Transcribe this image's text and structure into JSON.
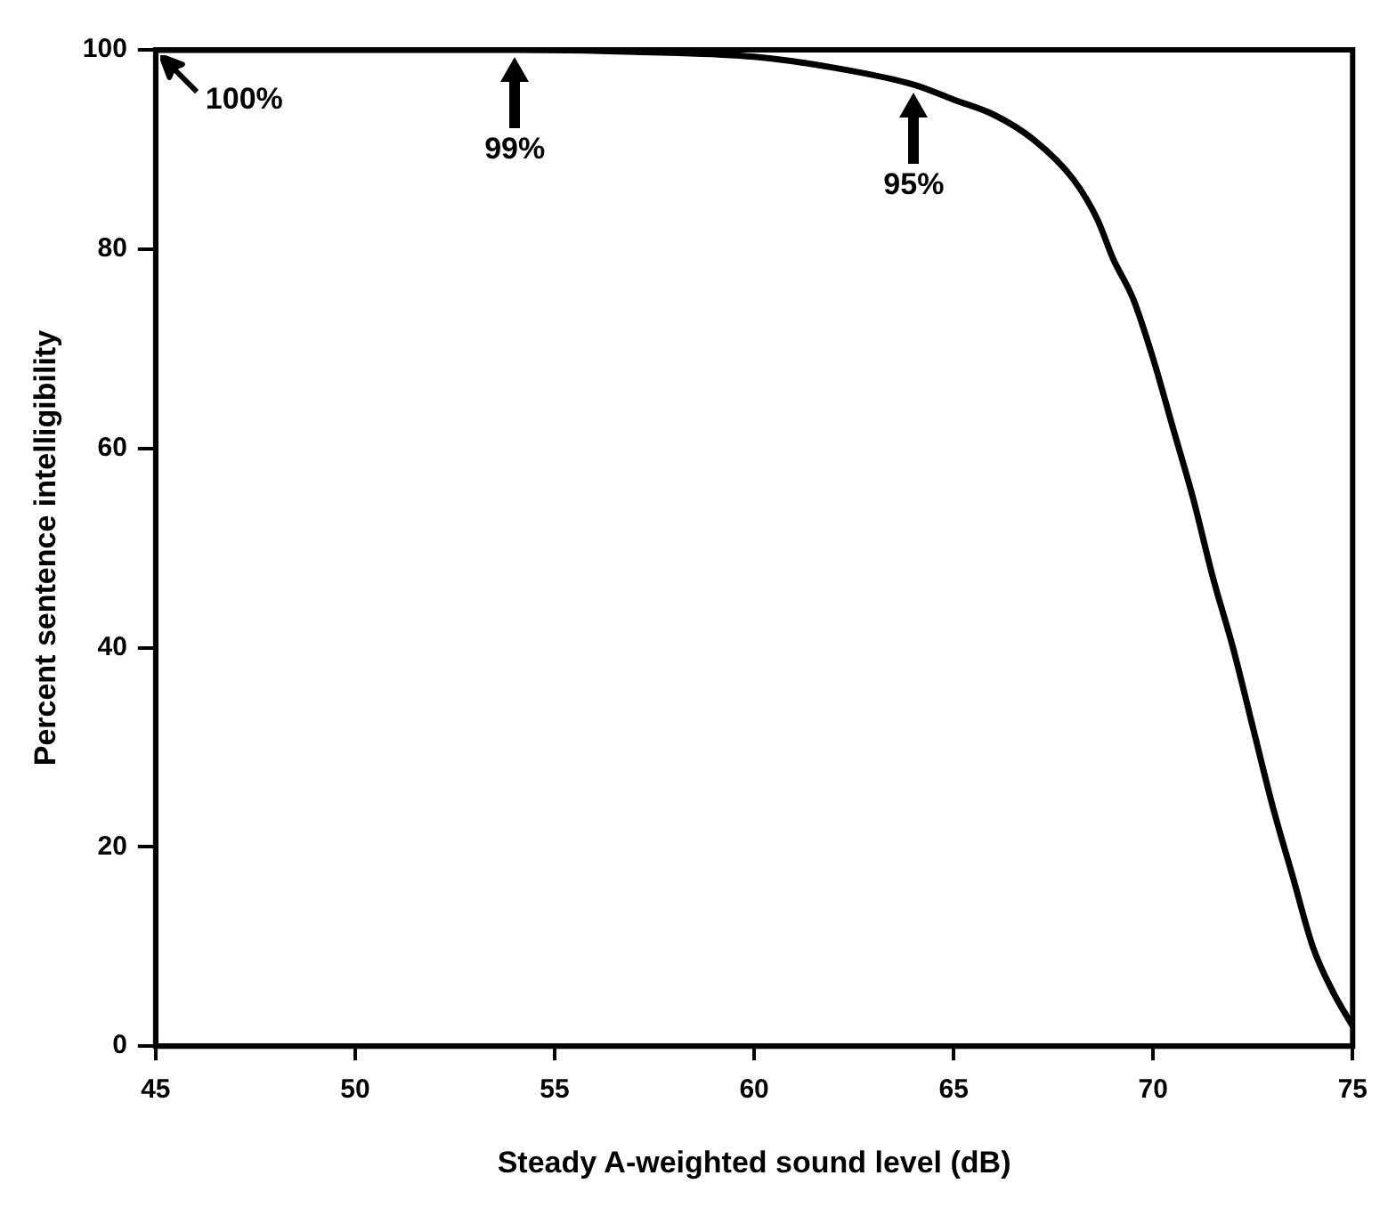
{
  "chart_data": {
    "type": "line",
    "xlabel": "Steady A-weighted sound level (dB)",
    "ylabel": "Percent sentence intelligibility",
    "x": [
      45,
      48,
      51,
      54,
      57,
      60,
      62,
      64,
      65,
      66,
      67,
      68,
      68.6,
      69,
      69.5,
      70,
      70.5,
      71,
      71.5,
      72,
      72.5,
      73,
      73.5,
      74,
      74.5,
      75
    ],
    "series": [
      {
        "color": "#000000",
        "values": [
          100,
          100,
          100,
          100,
          99.8,
          99.3,
          98.2,
          96.5,
          95,
          93.5,
          91,
          87,
          83,
          79,
          75,
          69,
          62,
          55,
          47,
          40,
          32,
          24,
          17,
          10,
          5.5,
          2
        ]
      }
    ],
    "xlim": [
      45,
      75
    ],
    "xticks": [
      45,
      50,
      55,
      60,
      65,
      70,
      75
    ],
    "ylim": [
      0,
      100
    ],
    "yticks": [
      0,
      20,
      40,
      60,
      80,
      100
    ],
    "annotations": [
      {
        "text": "100%",
        "x": 45,
        "y": 100
      },
      {
        "text": "99%",
        "x": 54,
        "y": 100
      },
      {
        "text": "95%",
        "x": 64,
        "y": 96.5
      }
    ],
    "grid": false,
    "legend": false,
    "marker": "none",
    "line_style": "solid"
  }
}
